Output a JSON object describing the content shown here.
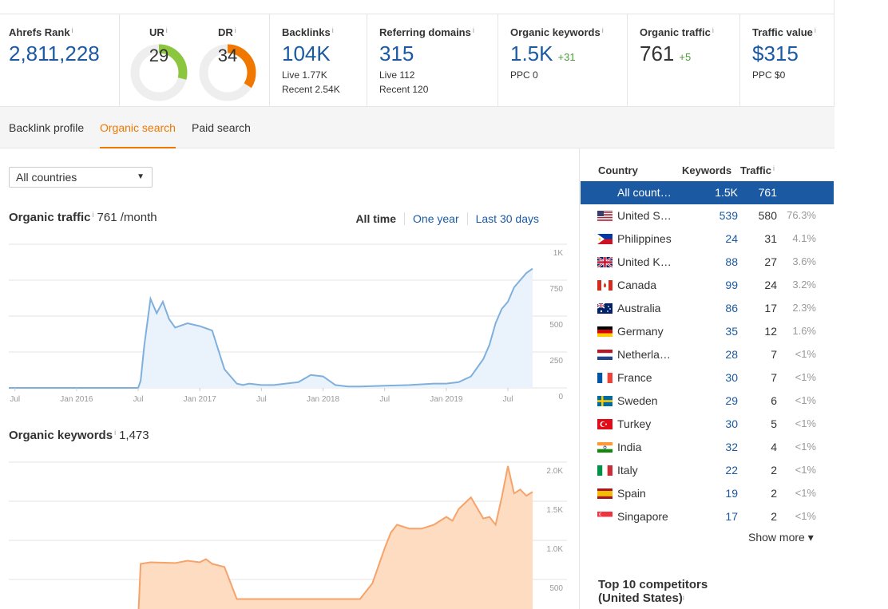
{
  "metrics": {
    "ahrefs_rank": {
      "label": "Ahrefs Rank",
      "value": "2,811,228"
    },
    "ur": {
      "label": "UR",
      "value": "29",
      "score": 29
    },
    "dr": {
      "label": "DR",
      "value": "34",
      "score": 34
    },
    "backlinks": {
      "label": "Backlinks",
      "value": "104K",
      "live": "Live 1.77K",
      "recent": "Recent 2.54K"
    },
    "referring_domains": {
      "label": "Referring domains",
      "value": "315",
      "live": "Live 112",
      "recent": "Recent 120"
    },
    "organic_keywords": {
      "label": "Organic keywords",
      "value": "1.5K",
      "delta": "+31",
      "ppc": "PPC 0"
    },
    "organic_traffic": {
      "label": "Organic traffic",
      "value": "761",
      "delta": "+5"
    },
    "traffic_value": {
      "label": "Traffic value",
      "value": "$315",
      "ppc": "PPC $0"
    },
    "info_glyph": "i"
  },
  "tabs": [
    {
      "label": "Backlink profile",
      "active": false
    },
    {
      "label": "Organic search",
      "active": true
    },
    {
      "label": "Paid search",
      "active": false
    }
  ],
  "filter": {
    "selected": "All countries"
  },
  "organic_traffic_section": {
    "title": "Organic traffic",
    "value": "761 /month",
    "ranges": [
      "All time",
      "One year",
      "Last 30 days"
    ]
  },
  "organic_keywords_section": {
    "title": "Organic keywords",
    "value": "1,473"
  },
  "chart_data": [
    {
      "type": "area",
      "x": [
        2015.45,
        2015.9,
        2016.3,
        2016.5,
        2016.52,
        2016.55,
        2016.6,
        2016.65,
        2016.7,
        2016.75,
        2016.8,
        2016.9,
        2017.0,
        2017.1,
        2017.2,
        2017.3,
        2017.35,
        2017.4,
        2017.5,
        2017.6,
        2017.8,
        2017.9,
        2018.0,
        2018.1,
        2018.2,
        2018.3,
        2018.5,
        2018.7,
        2018.9,
        2019.0,
        2019.1,
        2019.2,
        2019.3,
        2019.35,
        2019.4,
        2019.45,
        2019.5,
        2019.55,
        2019.6,
        2019.65,
        2019.7
      ],
      "y": [
        0,
        0,
        0,
        0,
        50,
        300,
        620,
        520,
        600,
        480,
        420,
        450,
        430,
        400,
        130,
        30,
        20,
        30,
        20,
        20,
        40,
        90,
        80,
        20,
        10,
        10,
        15,
        20,
        30,
        30,
        40,
        80,
        200,
        300,
        450,
        550,
        600,
        700,
        750,
        800,
        830
      ],
      "xlim": [
        2015.45,
        2019.72
      ],
      "ylim": [
        0,
        1000
      ],
      "x_ticks": [
        "Jul",
        "Jan 2016",
        "Jul",
        "Jan 2017",
        "Jul",
        "Jan 2018",
        "Jul",
        "Jan 2019",
        "Jul"
      ],
      "x_tick_values": [
        2015.5,
        2016.0,
        2016.5,
        2017.0,
        2017.5,
        2018.0,
        2018.5,
        2019.0,
        2019.5
      ],
      "y_ticks": [
        "0",
        "250",
        "500",
        "750",
        "1K"
      ],
      "y_tick_values": [
        0,
        250,
        500,
        750,
        1000
      ],
      "color": "#7fb0dd",
      "fill": "#eaf3fb",
      "grid": true
    },
    {
      "type": "area",
      "x": [
        2016.5,
        2016.52,
        2016.6,
        2016.8,
        2016.9,
        2017.0,
        2017.05,
        2017.1,
        2017.2,
        2017.3,
        2018.3,
        2018.4,
        2018.5,
        2018.55,
        2018.6,
        2018.7,
        2018.8,
        2018.9,
        2019.0,
        2019.05,
        2019.1,
        2019.2,
        2019.3,
        2019.35,
        2019.4,
        2019.45,
        2019.5,
        2019.55,
        2019.6,
        2019.65,
        2019.7
      ],
      "y": [
        0,
        700,
        720,
        710,
        740,
        720,
        760,
        700,
        660,
        250,
        250,
        450,
        900,
        1100,
        1200,
        1150,
        1150,
        1200,
        1300,
        1250,
        1400,
        1550,
        1280,
        1300,
        1200,
        1550,
        1950,
        1600,
        1650,
        1570,
        1620
      ],
      "xlim": [
        2015.45,
        2019.72
      ],
      "ylim": [
        0,
        2000
      ],
      "y_ticks": [
        "500",
        "1.0K",
        "1.5K",
        "2.0K"
      ],
      "y_tick_values": [
        500,
        1000,
        1500,
        2000
      ],
      "color": "#f5a36a",
      "fill": "#fddcc1",
      "grid": true
    }
  ],
  "countries_table": {
    "headers": {
      "country": "Country",
      "keywords": "Keywords",
      "traffic": "Traffic"
    },
    "rows": [
      {
        "name": "All count…",
        "keywords": "1.5K",
        "traffic": "761",
        "pct": "",
        "flag": "",
        "selected": true
      },
      {
        "name": "United S…",
        "keywords": "539",
        "traffic": "580",
        "pct": "76.3%",
        "flag": "us-flag-icon",
        "selected": false
      },
      {
        "name": "Philippines",
        "keywords": "24",
        "traffic": "31",
        "pct": "4.1%",
        "flag": "ph-flag-icon",
        "selected": false
      },
      {
        "name": "United K…",
        "keywords": "88",
        "traffic": "27",
        "pct": "3.6%",
        "flag": "gb-flag-icon",
        "selected": false
      },
      {
        "name": "Canada",
        "keywords": "99",
        "traffic": "24",
        "pct": "3.2%",
        "flag": "ca-flag-icon",
        "selected": false
      },
      {
        "name": "Australia",
        "keywords": "86",
        "traffic": "17",
        "pct": "2.3%",
        "flag": "au-flag-icon",
        "selected": false
      },
      {
        "name": "Germany",
        "keywords": "35",
        "traffic": "12",
        "pct": "1.6%",
        "flag": "de-flag-icon",
        "selected": false
      },
      {
        "name": "Netherla…",
        "keywords": "28",
        "traffic": "7",
        "pct": "<1%",
        "flag": "nl-flag-icon",
        "selected": false
      },
      {
        "name": "France",
        "keywords": "30",
        "traffic": "7",
        "pct": "<1%",
        "flag": "fr-flag-icon",
        "selected": false
      },
      {
        "name": "Sweden",
        "keywords": "29",
        "traffic": "6",
        "pct": "<1%",
        "flag": "se-flag-icon",
        "selected": false
      },
      {
        "name": "Turkey",
        "keywords": "30",
        "traffic": "5",
        "pct": "<1%",
        "flag": "tr-flag-icon",
        "selected": false
      },
      {
        "name": "India",
        "keywords": "32",
        "traffic": "4",
        "pct": "<1%",
        "flag": "in-flag-icon",
        "selected": false
      },
      {
        "name": "Italy",
        "keywords": "22",
        "traffic": "2",
        "pct": "<1%",
        "flag": "it-flag-icon",
        "selected": false
      },
      {
        "name": "Spain",
        "keywords": "19",
        "traffic": "2",
        "pct": "<1%",
        "flag": "es-flag-icon",
        "selected": false
      },
      {
        "name": "Singapore",
        "keywords": "17",
        "traffic": "2",
        "pct": "<1%",
        "flag": "sg-flag-icon",
        "selected": false
      }
    ],
    "show_more": "Show more ▾"
  },
  "competitors": {
    "title_line1": "Top 10 competitors",
    "title_line2": "(United States)"
  },
  "colors": {
    "accent": "#f07800",
    "link": "#1b5aa2",
    "positive": "#4a9b3c",
    "ur_gauge": "#8cc63f",
    "dr_gauge": "#f07800",
    "gauge_track": "#eeeeee"
  }
}
